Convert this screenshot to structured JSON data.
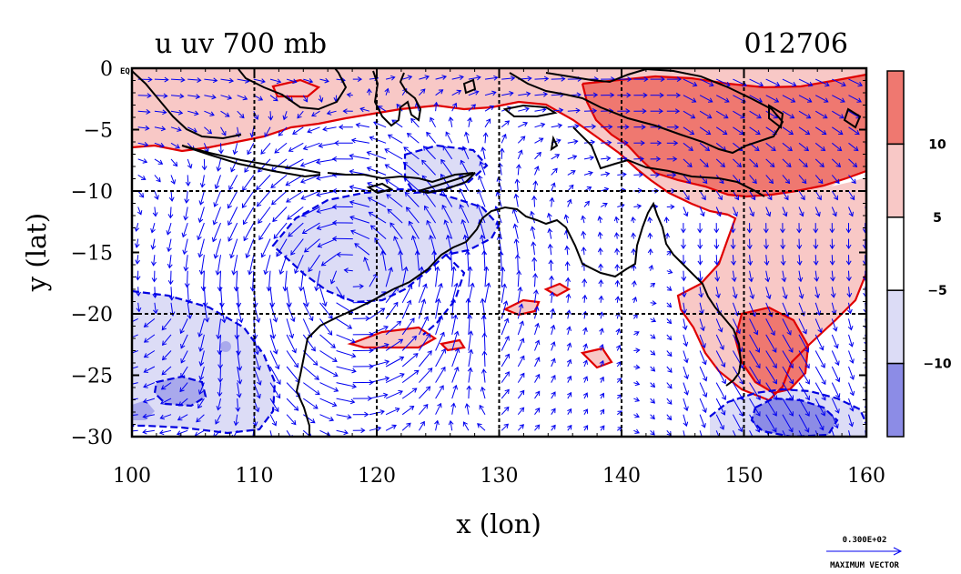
{
  "title_left": "u uv 700 mb",
  "title_right": "012706",
  "eq_label": "EQ",
  "axes": {
    "xlabel": "x (lon)",
    "ylabel": "y (lat)",
    "xlim": [
      100,
      160
    ],
    "ylim": [
      -30,
      0
    ],
    "xticks": [
      100,
      110,
      120,
      130,
      140,
      150,
      160
    ],
    "yticks": [
      0,
      -5,
      -10,
      -15,
      -20,
      -25,
      -30
    ],
    "xticklabels": [
      "100",
      "110",
      "120",
      "130",
      "140",
      "150",
      "160"
    ],
    "yticklabels": [
      "0",
      "−5",
      "−10",
      "−15",
      "−20",
      "−25",
      "−30"
    ],
    "gridlines_lon": [
      110,
      120,
      130,
      140,
      150
    ],
    "gridlines_lat": [
      -10,
      -20
    ]
  },
  "colorbar": {
    "levels": [
      {
        "color": "#ef7870"
      },
      {
        "color": "#f8c8c6"
      },
      {
        "color": "#ffffff"
      },
      {
        "color": "#dcdcf6"
      },
      {
        "color": "#8c8ce6"
      }
    ],
    "labels": [
      "10",
      "5",
      "−5",
      "−10"
    ]
  },
  "colors": {
    "positive_contour": "#e00000",
    "negative_contour": "#0000e0",
    "vector": "#0000f0",
    "coast": "#000000"
  },
  "max_vector": {
    "value": "0.300E+02",
    "label": "MAXIMUM VECTOR"
  },
  "chart_data": {
    "type": "heatmap",
    "title": "u uv 700 mb",
    "subtitle": "012706",
    "xlabel": "x (lon)",
    "ylabel": "y (lat)",
    "xlim": [
      100,
      160
    ],
    "ylim": [
      -30,
      0
    ],
    "contour_levels": [
      -10,
      -5,
      5,
      10
    ],
    "regions": [
      {
        "level": "5 to 10",
        "lon": [
          100,
          160
        ],
        "lat": [
          -6,
          0
        ]
      },
      {
        "level": ">10",
        "lon": [
          136,
          160
        ],
        "lat": [
          -13,
          -1
        ]
      },
      {
        "level": "5 to 10",
        "lon": [
          142,
          160
        ],
        "lat": [
          -22,
          -8
        ]
      },
      {
        "level": ">10",
        "lon": [
          149,
          154
        ],
        "lat": [
          -27,
          -20
        ]
      },
      {
        "level": "-10 to -5",
        "lon": [
          110,
          124
        ],
        "lat": [
          -20,
          -11
        ]
      },
      {
        "level": "-10 to -5",
        "lon": [
          100,
          112
        ],
        "lat": [
          -30,
          -21
        ]
      },
      {
        "level": "<-10",
        "lon": [
          102,
          106
        ],
        "lat": [
          -29,
          -26
        ]
      },
      {
        "level": "<-10",
        "lon": [
          150,
          157
        ],
        "lat": [
          -30,
          -27
        ]
      }
    ],
    "grid": true
  }
}
